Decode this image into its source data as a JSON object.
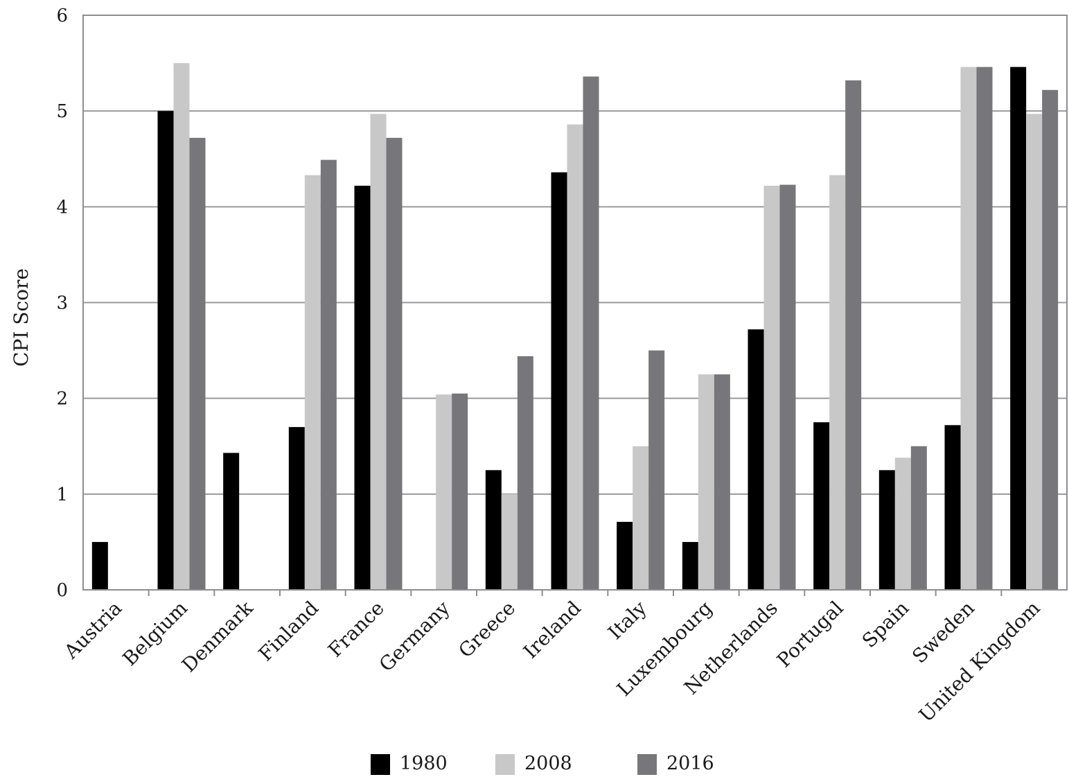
{
  "chart_data": {
    "type": "bar",
    "title": "",
    "xlabel": "",
    "ylabel": "CPI Score",
    "ylim": [
      0,
      6
    ],
    "yticks": [
      "0",
      "1",
      "2",
      "3",
      "4",
      "5",
      "6"
    ],
    "grid": "horizontal",
    "legend_position": "bottom",
    "categories": [
      "Austria",
      "Belgium",
      "Denmark",
      "Finland",
      "France",
      "Germany",
      "Greece",
      "Ireland",
      "Italy",
      "Luxembourg",
      "Netherlands",
      "Portugal",
      "Spain",
      "Sweden",
      "United Kingdom"
    ],
    "series": [
      {
        "name": "1980",
        "color": "#000000",
        "values": [
          0.5,
          5.0,
          1.43,
          1.7,
          4.22,
          null,
          1.25,
          4.36,
          0.71,
          0.5,
          2.72,
          1.75,
          1.25,
          1.72,
          5.46
        ]
      },
      {
        "name": "2008",
        "color": "#c8c8c9",
        "values": [
          null,
          5.5,
          null,
          4.33,
          4.97,
          2.04,
          1.0,
          4.86,
          1.5,
          2.25,
          4.22,
          4.33,
          1.38,
          5.46,
          4.97
        ]
      },
      {
        "name": "2016",
        "color": "#77777b",
        "values": [
          null,
          4.72,
          null,
          4.49,
          4.72,
          2.05,
          2.44,
          5.36,
          2.5,
          2.25,
          4.23,
          5.32,
          1.5,
          5.46,
          5.22
        ]
      }
    ]
  }
}
